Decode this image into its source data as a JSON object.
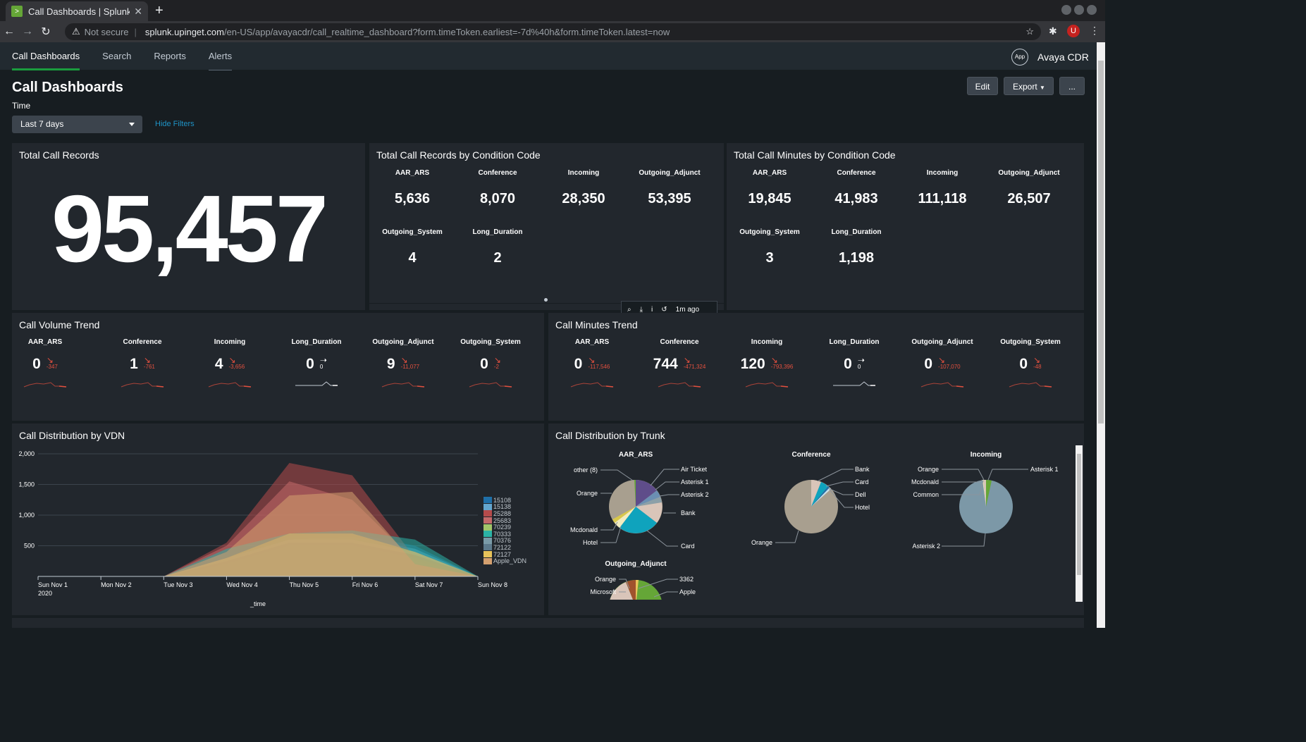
{
  "browser": {
    "tab_title": "Call Dashboards | Splunk",
    "security": "Not secure",
    "url_host": "splunk.upinget.com",
    "url_path": "/en-US/app/avayacdr/call_realtime_dashboard?form.timeToken.earliest=-7d%40h&form.timeToken.latest=now",
    "profile_initial": "U"
  },
  "appbar": {
    "nav": [
      "Call Dashboards",
      "Search",
      "Reports",
      "Alerts"
    ],
    "app_badge": "App",
    "app_name": "Avaya CDR"
  },
  "dashboard": {
    "title": "Call Dashboards",
    "edit": "Edit",
    "export": "Export",
    "more": "...",
    "time_label": "Time",
    "time_value": "Last 7 days",
    "hide_filters": "Hide Filters"
  },
  "total_records": {
    "title": "Total Call Records",
    "value": "95,457"
  },
  "records_by_code": {
    "title": "Total Call Records by Condition Code",
    "items": [
      {
        "label": "AAR_ARS",
        "value": "5,636"
      },
      {
        "label": "Conference",
        "value": "8,070"
      },
      {
        "label": "Incoming",
        "value": "28,350"
      },
      {
        "label": "Outgoing_Adjunct",
        "value": "53,395"
      },
      {
        "label": "Outgoing_System",
        "value": "4"
      },
      {
        "label": "Long_Duration",
        "value": "2"
      }
    ]
  },
  "minutes_by_code": {
    "title": "Total Call Minutes by Condition Code",
    "items": [
      {
        "label": "AAR_ARS",
        "value": "19,845"
      },
      {
        "label": "Conference",
        "value": "41,983"
      },
      {
        "label": "Incoming",
        "value": "111,118"
      },
      {
        "label": "Outgoing_Adjunct",
        "value": "26,507"
      },
      {
        "label": "Outgoing_System",
        "value": "3"
      },
      {
        "label": "Long_Duration",
        "value": "1,198"
      }
    ]
  },
  "panel_toolbar": {
    "refreshed": "1m ago"
  },
  "volume_trend": {
    "title": "Call Volume Trend",
    "items": [
      {
        "label": "AAR_ARS",
        "value": "0",
        "delta": "-347",
        "dir": "down"
      },
      {
        "label": "Conference",
        "value": "1",
        "delta": "-761",
        "dir": "down"
      },
      {
        "label": "Incoming",
        "value": "4",
        "delta": "-3,656",
        "dir": "down"
      },
      {
        "label": "Long_Duration",
        "value": "0",
        "delta": "0",
        "dir": "flat"
      },
      {
        "label": "Outgoing_Adjunct",
        "value": "9",
        "delta": "-11,077",
        "dir": "down"
      },
      {
        "label": "Outgoing_System",
        "value": "0",
        "delta": "-2",
        "dir": "down"
      }
    ]
  },
  "minutes_trend": {
    "title": "Call Minutes Trend",
    "items": [
      {
        "label": "AAR_ARS",
        "value": "0",
        "delta": "-117,546",
        "dir": "down"
      },
      {
        "label": "Conference",
        "value": "744",
        "delta": "-471,324",
        "dir": "down"
      },
      {
        "label": "Incoming",
        "value": "120",
        "delta": "-793,396",
        "dir": "down"
      },
      {
        "label": "Long_Duration",
        "value": "0",
        "delta": "0",
        "dir": "flat"
      },
      {
        "label": "Outgoing_Adjunct",
        "value": "0",
        "delta": "-107,070",
        "dir": "down"
      },
      {
        "label": "Outgoing_System",
        "value": "0",
        "delta": "-48",
        "dir": "down"
      }
    ]
  },
  "vdn": {
    "title": "Call Distribution by VDN"
  },
  "trunk": {
    "title": "Call Distribution by Trunk",
    "pies": [
      {
        "title": "AAR_ARS",
        "labels": [
          "other (8)",
          "Orange",
          "Mcdonald",
          "Hotel",
          "Air Ticket",
          "Asterisk 1",
          "Asterisk 2",
          "Bank",
          "Card"
        ]
      },
      {
        "title": "Conference",
        "labels": [
          "Bank",
          "Card",
          "Dell",
          "Hotel",
          "Orange"
        ]
      },
      {
        "title": "Incoming",
        "labels": [
          "Orange",
          "Mcdonald",
          "Common",
          "Asterisk 1",
          "Asterisk 2"
        ]
      },
      {
        "title": "Outgoing_Adjunct",
        "labels": [
          "Orange",
          "Microsoft",
          "3362",
          "Apple"
        ]
      }
    ]
  },
  "chart_data": {
    "type": "area",
    "x": [
      "Sun Nov 1\n2020",
      "Mon Nov 2",
      "Tue Nov 3",
      "Wed Nov 4",
      "Thu Nov 5",
      "Fri Nov 6",
      "Sat Nov 7",
      "Sun Nov 8"
    ],
    "xlabel": "_time",
    "ylabel": "",
    "yticks": [
      500,
      1000,
      1500,
      2000
    ],
    "ytick_labels": [
      "500",
      "1,000",
      "1,500",
      "2,000"
    ],
    "ylim": [
      0,
      2000
    ],
    "legend_position": "right",
    "series": [
      {
        "name": "15108",
        "color": "#1f6fa8",
        "values": [
          0,
          0,
          0,
          300,
          650,
          700,
          500,
          0
        ]
      },
      {
        "name": "15138",
        "color": "#64a6cf",
        "values": [
          0,
          0,
          0,
          250,
          600,
          650,
          450,
          0
        ]
      },
      {
        "name": "25288",
        "color": "#b54b4b",
        "values": [
          0,
          0,
          0,
          550,
          1850,
          1650,
          300,
          0
        ]
      },
      {
        "name": "25683",
        "color": "#c46a6a",
        "values": [
          0,
          0,
          0,
          500,
          1550,
          1250,
          250,
          0
        ]
      },
      {
        "name": "70239",
        "color": "#a3c56a",
        "values": [
          0,
          0,
          0,
          200,
          500,
          500,
          300,
          0
        ]
      },
      {
        "name": "70333",
        "color": "#2bb3a6",
        "values": [
          0,
          0,
          0,
          450,
          700,
          750,
          600,
          0
        ]
      },
      {
        "name": "70376",
        "color": "#7a9ba8",
        "values": [
          0,
          0,
          0,
          300,
          600,
          600,
          400,
          0
        ]
      },
      {
        "name": "72122",
        "color": "#5d7a8c",
        "values": [
          0,
          0,
          0,
          250,
          550,
          550,
          350,
          0
        ]
      },
      {
        "name": "72127",
        "color": "#e8c35a",
        "values": [
          0,
          0,
          0,
          300,
          700,
          700,
          400,
          0
        ]
      },
      {
        "name": "Apple_VDN",
        "color": "#d4a06f",
        "values": [
          0,
          0,
          0,
          400,
          1320,
          1380,
          200,
          0
        ]
      }
    ]
  },
  "colors": {
    "background": "#171d21",
    "panel": "#22272d",
    "accent_green": "#1a9c3e",
    "trend_down": "#e4503f",
    "link": "#1e93c6"
  }
}
